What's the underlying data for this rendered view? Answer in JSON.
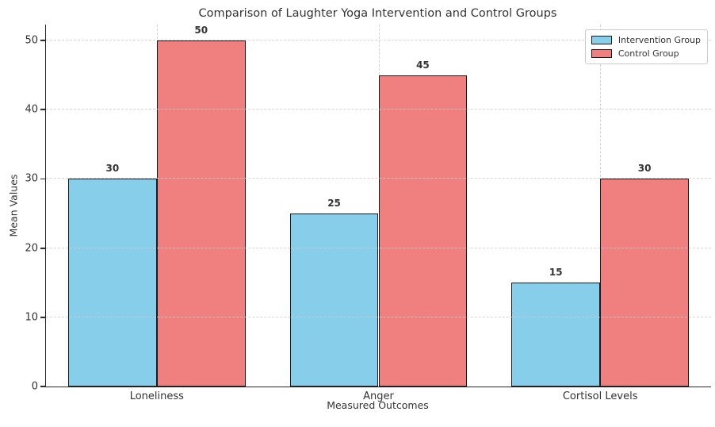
{
  "figure": {
    "background": "#ffffff"
  },
  "chart_data": {
    "type": "bar",
    "title": "Comparison of Laughter Yoga Intervention and Control Groups",
    "xlabel": "Measured Outcomes",
    "ylabel": "Mean Values",
    "categories": [
      "Loneliness",
      "Anger",
      "Cortisol Levels"
    ],
    "series": [
      {
        "name": "Intervention Group",
        "color": "#87CEEB",
        "values": [
          30,
          25,
          15
        ]
      },
      {
        "name": "Control Group",
        "color": "#F08080",
        "values": [
          50,
          45,
          30
        ]
      }
    ],
    "bar_edge_color": "#1a1a1a",
    "value_labels_shown": true,
    "yticks": [
      0,
      10,
      20,
      30,
      40,
      50
    ],
    "ylim": [
      0,
      52.3
    ],
    "grid": {
      "visible": true,
      "style": "dashed",
      "color": "#cdcdcd",
      "axes": "both"
    },
    "legend": {
      "position": "upper-right"
    }
  }
}
